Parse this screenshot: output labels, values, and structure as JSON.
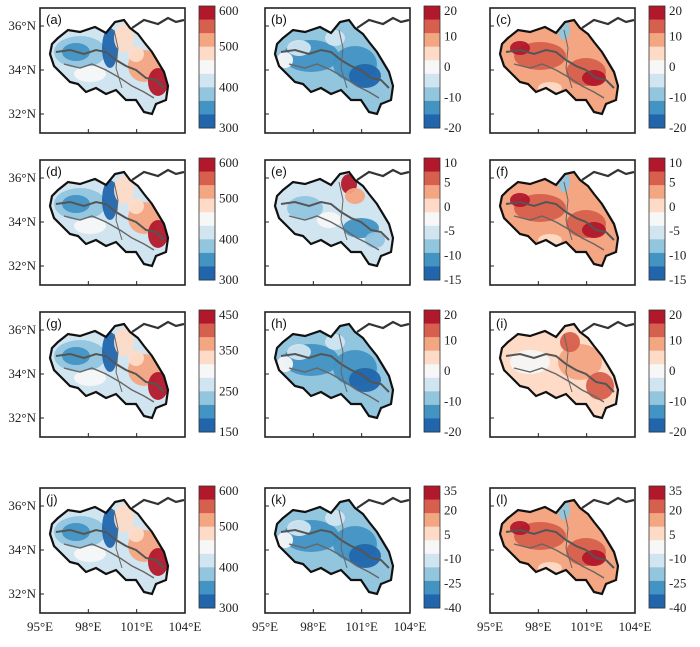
{
  "figure": {
    "lat_ticks": [
      "36°N",
      "34°N",
      "32°N"
    ],
    "lon_ticks": [
      "95°E",
      "98°E",
      "101°E",
      "104°E"
    ],
    "panels": [
      {
        "label": "(a)",
        "colorbar": [
          "600",
          "500",
          "400",
          "300"
        ],
        "palette": "seq",
        "pattern": "abs"
      },
      {
        "label": "(b)",
        "colorbar": [
          "20",
          "10",
          "0",
          "-10",
          "-20"
        ],
        "palette": "div",
        "pattern": "neg"
      },
      {
        "label": "(c)",
        "colorbar": [
          "20",
          "10",
          "0",
          "-10",
          "-20"
        ],
        "palette": "div",
        "pattern": "pos"
      },
      {
        "label": "(d)",
        "colorbar": [
          "600",
          "500",
          "400",
          "300"
        ],
        "palette": "seq",
        "pattern": "abs"
      },
      {
        "label": "(e)",
        "colorbar": [
          "10",
          "5",
          "0",
          "-5",
          "-10",
          "-15"
        ],
        "palette": "div",
        "pattern": "mix"
      },
      {
        "label": "(f)",
        "colorbar": [
          "10",
          "5",
          "0",
          "-5",
          "-10",
          "-15"
        ],
        "palette": "div",
        "pattern": "pos"
      },
      {
        "label": "(g)",
        "colorbar": [
          "450",
          "350",
          "250",
          "150"
        ],
        "palette": "seq",
        "pattern": "abs"
      },
      {
        "label": "(h)",
        "colorbar": [
          "20",
          "10",
          "0",
          "-10",
          "-20"
        ],
        "palette": "div",
        "pattern": "neg"
      },
      {
        "label": "(i)",
        "colorbar": [
          "20",
          "10",
          "0",
          "-10",
          "-20"
        ],
        "palette": "div",
        "pattern": "poslight"
      },
      {
        "label": "(j)",
        "colorbar": [
          "600",
          "500",
          "400",
          "300"
        ],
        "palette": "seq",
        "pattern": "abs"
      },
      {
        "label": "(k)",
        "colorbar": [
          "35",
          "20",
          "5",
          "-10",
          "-25",
          "-40"
        ],
        "palette": "div",
        "pattern": "neg"
      },
      {
        "label": "(l)",
        "colorbar": [
          "35",
          "20",
          "5",
          "-10",
          "-25",
          "-40"
        ],
        "palette": "div",
        "pattern": "pos"
      }
    ]
  },
  "colors": {
    "scale": [
      "#b2182b",
      "#d6604d",
      "#f4a582",
      "#fddbc7",
      "#f7f7f7",
      "#d1e5f0",
      "#92c5de",
      "#4393c3",
      "#2166ac"
    ]
  }
}
